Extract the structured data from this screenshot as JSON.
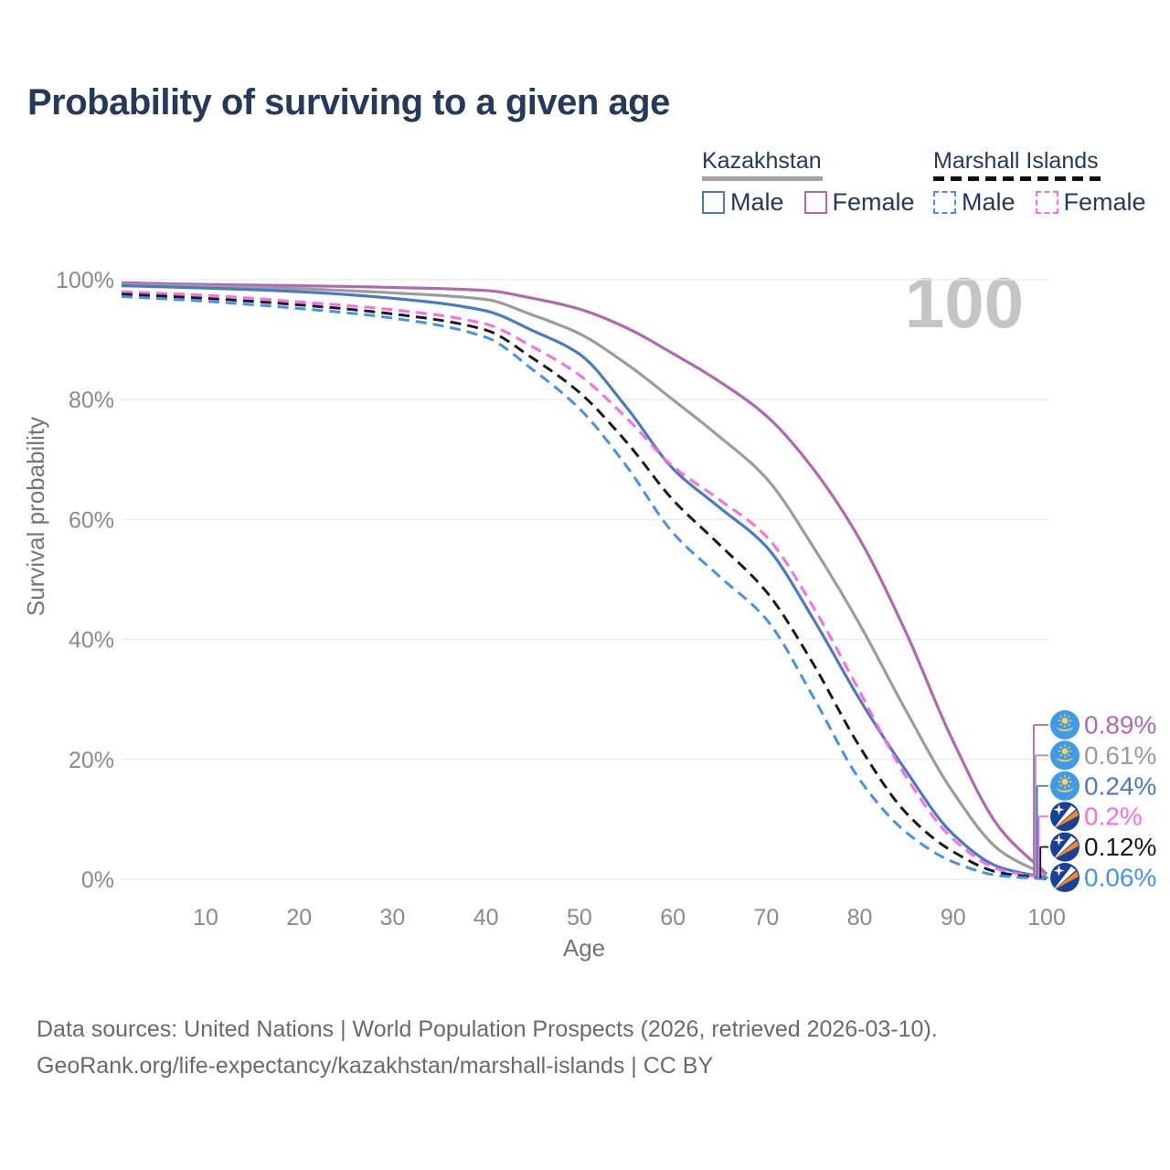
{
  "title": "Probability of surviving to a given age",
  "legend": {
    "groups": [
      {
        "label": "Kazakhstan",
        "line_style": "solid",
        "underline_color": "#a3a3a3",
        "items": [
          {
            "label": "Male",
            "color": "#4a7ac6"
          },
          {
            "label": "Female",
            "color": "#b168b4"
          }
        ]
      },
      {
        "label": "Marshall Islands",
        "line_style": "dashed",
        "underline_color": "#111111",
        "items": [
          {
            "label": "Male",
            "color": "#4590f2"
          },
          {
            "label": "Female",
            "color": "#fb6ce3"
          }
        ]
      }
    ]
  },
  "chart_data": {
    "type": "line",
    "title": "Probability of surviving to a given age",
    "xlabel": "Age",
    "ylabel": "Survival probability",
    "xlim": [
      1,
      100
    ],
    "ylim": [
      0,
      100
    ],
    "x_ticks": [
      10,
      20,
      30,
      40,
      50,
      60,
      70,
      80,
      90,
      100
    ],
    "y_ticks": [
      0,
      20,
      40,
      60,
      80,
      100
    ],
    "y_tick_suffix": "%",
    "grid": "horizontal",
    "legend_position": "top-right",
    "age_indicator": "100",
    "x": [
      1,
      10,
      20,
      30,
      40,
      45,
      50,
      55,
      60,
      65,
      70,
      75,
      80,
      85,
      90,
      95,
      100
    ],
    "series": [
      {
        "name": "Kazakhstan Female",
        "color": "#b168b4",
        "dash": "solid",
        "flag": "kz",
        "end_label": "0.89%",
        "values": [
          99.5,
          99.2,
          99.0,
          98.7,
          98.2,
          96.9,
          95.1,
          92.0,
          87.7,
          83.0,
          77.3,
          68.5,
          56.7,
          41.0,
          23.0,
          8.5,
          0.89
        ]
      },
      {
        "name": "Kazakhstan Both sexes",
        "color": "#9c9c9c",
        "dash": "solid",
        "flag": "kz",
        "end_label": "0.61%",
        "values": [
          99.2,
          98.9,
          98.5,
          97.8,
          96.7,
          94.1,
          91.0,
          86.0,
          80.0,
          73.8,
          66.9,
          55.5,
          42.5,
          28.0,
          14.5,
          4.8,
          0.61
        ]
      },
      {
        "name": "Kazakhstan Male",
        "color": "#4a7ac6",
        "dash": "solid",
        "flag": "kz",
        "end_label": "0.24%",
        "values": [
          99.0,
          98.6,
          98.0,
          96.9,
          94.8,
          91.5,
          87.6,
          78.8,
          68.5,
          62.0,
          55.5,
          43.5,
          30.0,
          18.0,
          7.5,
          2.0,
          0.24
        ]
      },
      {
        "name": "Marshall Islands Female",
        "color": "#fb6ce3",
        "dash": "dashed",
        "flag": "mh",
        "end_label": "0.2%",
        "values": [
          98.0,
          97.4,
          96.3,
          95.0,
          92.6,
          88.8,
          84.1,
          77.0,
          68.9,
          63.3,
          57.2,
          45.5,
          31.3,
          17.0,
          6.7,
          1.6,
          0.2
        ]
      },
      {
        "name": "Marshall Islands Both sexes",
        "color": "#1b1b1b",
        "dash": "dashed",
        "flag": "mh",
        "end_label": "0.12%",
        "values": [
          97.6,
          96.9,
          95.8,
          94.3,
          91.6,
          86.9,
          81.2,
          73.0,
          63.3,
          55.8,
          48.0,
          36.0,
          22.1,
          11.0,
          4.6,
          1.1,
          0.12
        ]
      },
      {
        "name": "Marshall Islands Male",
        "color": "#4590f2",
        "dash": "dashed",
        "flag": "mh",
        "end_label": "0.06%",
        "values": [
          97.2,
          96.4,
          95.2,
          93.6,
          90.4,
          85.0,
          78.5,
          69.0,
          57.8,
          50.5,
          43.4,
          30.5,
          16.6,
          7.8,
          2.9,
          0.6,
          0.06
        ]
      }
    ]
  },
  "flag_colors": {
    "kz_background": "#3e9be9",
    "kz_gold": "#ffd24a",
    "mh_background": "#19419c",
    "mh_orange": "#f08a1f",
    "mh_white": "#ffffff"
  },
  "footer": {
    "line1": "Data sources: United Nations | World Population Prospects (2026, retrieved 2026-03-10).",
    "line2": "GeoRank.org/life-expectancy/kazakhstan/marshall-islands | CC BY"
  }
}
